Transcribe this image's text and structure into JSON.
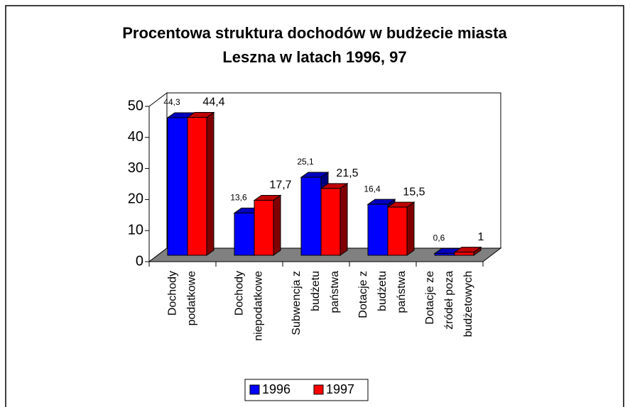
{
  "chart_data": {
    "type": "bar3d",
    "title": [
      "Procentowa struktura dochodów w budżecie miasta",
      "Leszna w latach 1996, 97"
    ],
    "categories": [
      [
        "Dochody",
        "podatkowe"
      ],
      [
        "Dochody",
        "niepodatkowe"
      ],
      [
        "Subwencja z",
        "budżetu",
        "państwa"
      ],
      [
        "Dotacje z",
        "budżetu",
        "państwa"
      ],
      [
        "Dotacje ze",
        "źródeł poza",
        "budżetowych"
      ]
    ],
    "series": [
      {
        "name": "1996",
        "color": "#0000ff",
        "values": [
          44.3,
          13.6,
          25.1,
          16.4,
          0.6
        ],
        "value_labels": [
          "44,3",
          "13,6",
          "25,1",
          "16,4",
          "0,6"
        ]
      },
      {
        "name": "1997",
        "color": "#ff0000",
        "values": [
          44.4,
          17.7,
          21.5,
          15.5,
          1
        ],
        "value_labels": [
          "44,4",
          "17,7",
          "21,5",
          "15,5",
          "1"
        ]
      }
    ],
    "ylim": [
      0,
      50
    ],
    "yticks": [
      0,
      10,
      20,
      30,
      40,
      50
    ],
    "floor_color": "#808080"
  }
}
